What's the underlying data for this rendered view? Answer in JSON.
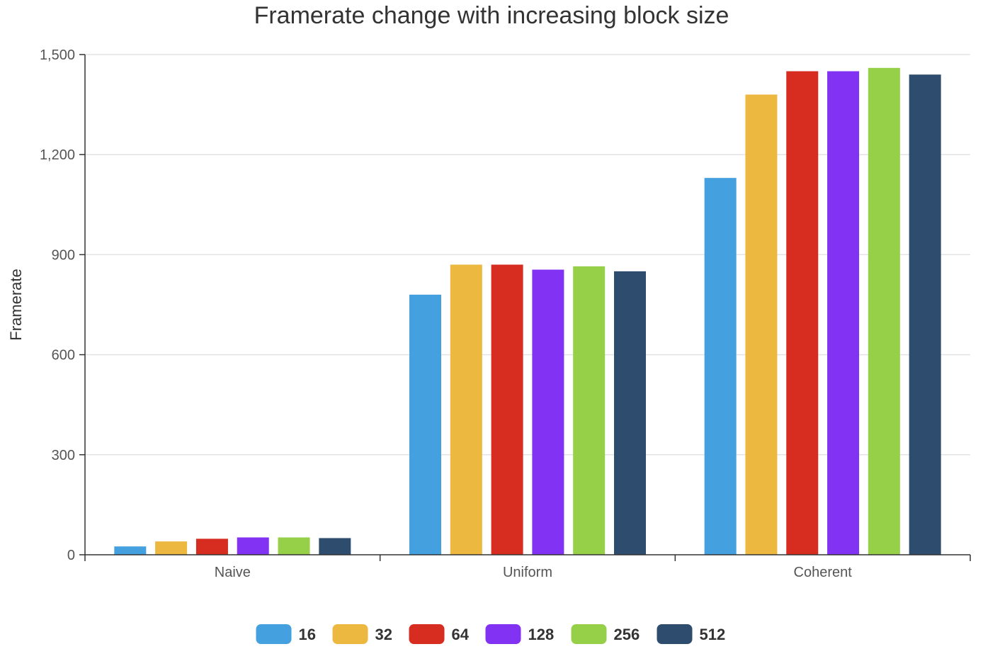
{
  "chart_data": {
    "type": "bar",
    "title": "Framerate change with increasing block size",
    "xlabel": "",
    "ylabel": "Framerate",
    "ylim": [
      0,
      1500
    ],
    "yticks": [
      0,
      300,
      600,
      900,
      1200,
      1500
    ],
    "ytick_labels": [
      "0",
      "300",
      "600",
      "900",
      "1,200",
      "1,500"
    ],
    "categories": [
      "Naive",
      "Uniform",
      "Coherent"
    ],
    "series": [
      {
        "name": "16",
        "color": "#44a0df",
        "values": [
          25,
          780,
          1130
        ]
      },
      {
        "name": "32",
        "color": "#ecb83f",
        "values": [
          40,
          870,
          1380
        ]
      },
      {
        "name": "64",
        "color": "#d62d20",
        "values": [
          48,
          870,
          1450
        ]
      },
      {
        "name": "128",
        "color": "#8232f2",
        "values": [
          52,
          855,
          1450
        ]
      },
      {
        "name": "256",
        "color": "#96d048",
        "values": [
          52,
          865,
          1460
        ]
      },
      {
        "name": "512",
        "color": "#2e4c6d",
        "values": [
          50,
          850,
          1440
        ]
      }
    ],
    "grid": true,
    "legend": "bottom-center"
  }
}
